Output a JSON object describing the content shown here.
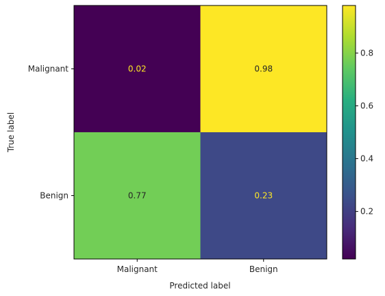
{
  "chart_data": {
    "type": "heatmap",
    "title": "",
    "xlabel": "Predicted label",
    "ylabel": "True label",
    "x_categories": [
      "Malignant",
      "Benign"
    ],
    "y_categories": [
      "Malignant",
      "Benign"
    ],
    "values": [
      [
        0.02,
        0.98
      ],
      [
        0.77,
        0.23
      ]
    ],
    "cell_labels": [
      [
        "0.02",
        "0.98"
      ],
      [
        "0.77",
        "0.23"
      ]
    ],
    "colormap": "viridis",
    "colorbar": {
      "range": [
        0.02,
        0.98
      ],
      "ticks": [
        0.2,
        0.4,
        0.6,
        0.8
      ],
      "tick_labels": [
        "0.2",
        "0.4",
        "0.6",
        "0.8"
      ]
    },
    "label_colors": {
      "on_dark": "#fde725",
      "on_light": "#262626"
    },
    "grid": false
  }
}
